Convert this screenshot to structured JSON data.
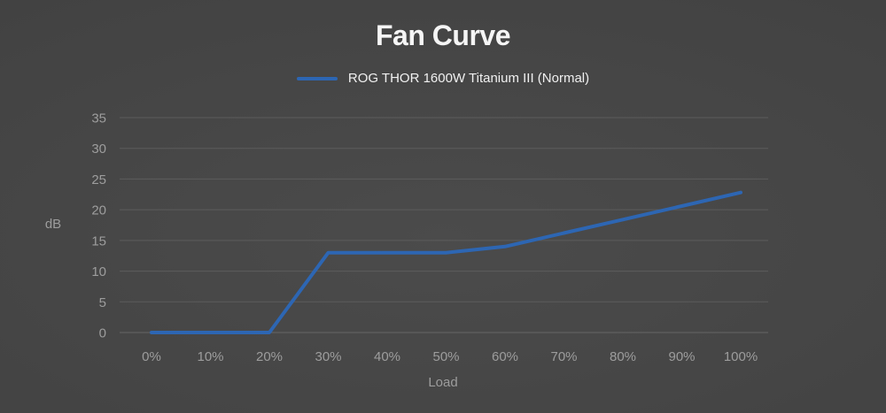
{
  "title": "Fan Curve",
  "legend": {
    "label": "ROG THOR 1600W Titanium III (Normal)"
  },
  "colors": {
    "line": "#2d66b3",
    "grid": "#5c5c5c",
    "tick_text": "#9d9d9d",
    "title_text": "#f5f5f5",
    "background_center": "#4b4b4b",
    "background_edge": "#3c3c3c"
  },
  "chart_data": {
    "type": "line",
    "title": "Fan Curve",
    "xlabel": "Load",
    "ylabel": "dB",
    "categories": [
      "0%",
      "10%",
      "20%",
      "30%",
      "40%",
      "50%",
      "60%",
      "70%",
      "80%",
      "90%",
      "100%"
    ],
    "series": [
      {
        "name": "ROG THOR 1600W Titanium III (Normal)",
        "values": [
          0,
          0,
          0,
          13,
          13,
          13,
          14,
          16.2,
          18.4,
          20.6,
          22.8
        ]
      }
    ],
    "ylim": [
      0,
      35
    ],
    "yticks": [
      0,
      5,
      10,
      15,
      20,
      25,
      30,
      35
    ],
    "grid": true,
    "legend_position": "top"
  }
}
